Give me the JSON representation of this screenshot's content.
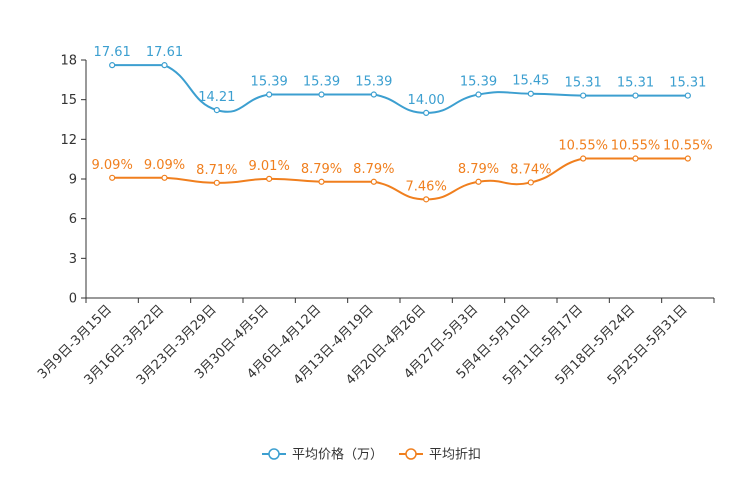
{
  "chart_data": {
    "type": "line",
    "title": "",
    "xlabel": "",
    "ylabel": "",
    "ylim": [
      0,
      18
    ],
    "yticks": [
      0,
      3,
      6,
      9,
      12,
      15,
      18
    ],
    "grid": false,
    "legend_position": "bottom-center",
    "categories": [
      "3月9日-3月15日",
      "3月16日-3月22日",
      "3月23日-3月29日",
      "3月30日-4月5日",
      "4月6日-4月12日",
      "4月13日-4月19日",
      "4月20日-4月26日",
      "4月27日-5月3日",
      "5月4日-5月10日",
      "5月11日-5月17日",
      "5月18日-5月24日",
      "5月25日-5月31日"
    ],
    "series": [
      {
        "name": "平均价格（万）",
        "color": "#3c9fd0",
        "values": [
          17.61,
          17.61,
          14.21,
          15.39,
          15.39,
          15.39,
          14.0,
          15.39,
          15.45,
          15.31,
          15.31,
          15.31
        ],
        "labels": [
          "17.61",
          "17.61",
          "14.21",
          "15.39",
          "15.39",
          "15.39",
          "14.00",
          "15.39",
          "15.45",
          "15.31",
          "15.31",
          "15.31"
        ]
      },
      {
        "name": "平均折扣",
        "color": "#f07f1e",
        "values": [
          9.09,
          9.09,
          8.71,
          9.01,
          8.79,
          8.79,
          7.46,
          8.79,
          8.74,
          10.55,
          10.55,
          10.55
        ],
        "labels": [
          "9.09%",
          "9.09%",
          "8.71%",
          "9.01%",
          "8.79%",
          "8.79%",
          "7.46%",
          "8.79%",
          "8.74%",
          "10.55%",
          "10.55%",
          "10.55%"
        ]
      }
    ]
  }
}
